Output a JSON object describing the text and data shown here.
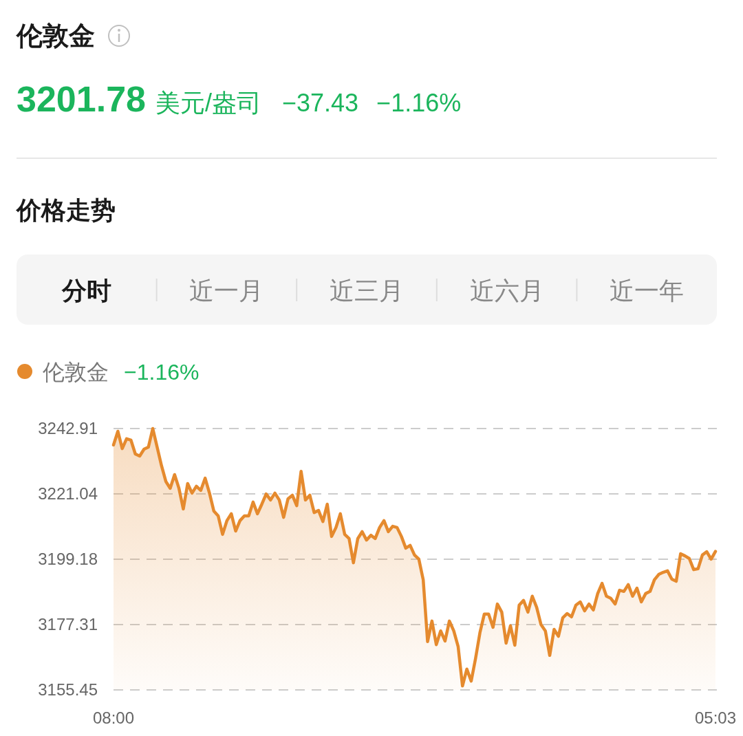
{
  "chart_data": {
    "type": "area",
    "title": "伦敦金",
    "annotations": [
      "3201.78",
      "美元/盎司",
      "−37.43",
      "−1.16%",
      "价格走势",
      "分时",
      "近一月",
      "近三月",
      "近六月",
      "近一年",
      "−1.16%"
    ],
    "categories": [
      "08:00",
      null,
      null,
      null,
      null,
      null,
      null,
      null,
      null,
      null,
      null,
      null,
      null,
      null,
      null,
      null,
      null,
      null,
      null,
      null,
      null,
      null,
      null,
      null,
      null,
      null,
      null,
      null,
      null,
      null,
      null,
      null,
      null,
      null,
      null,
      null,
      null,
      null,
      null,
      null,
      null,
      null,
      null,
      null,
      null,
      null,
      null,
      null,
      null,
      null,
      null,
      null,
      null,
      null,
      null,
      null,
      null,
      null,
      null,
      null,
      null,
      null,
      null,
      null,
      null,
      null,
      null,
      null,
      null,
      null,
      null,
      null,
      null,
      null,
      null,
      null,
      null,
      null,
      null,
      null,
      null,
      null,
      null,
      null,
      null,
      null,
      null,
      null,
      null,
      null,
      null,
      null,
      null,
      null,
      null,
      null,
      null,
      null,
      null,
      null,
      null,
      null,
      null,
      null,
      null,
      null,
      null,
      null,
      null,
      null,
      null,
      null,
      null,
      null,
      null,
      null,
      null,
      null,
      null,
      null,
      null,
      null,
      null,
      null,
      null,
      null,
      null,
      null,
      null,
      null,
      null,
      null,
      null,
      null,
      null,
      null,
      null,
      null,
      "05:03"
    ],
    "series": [
      {
        "name": "伦敦金",
        "color": "#e58a2e",
        "values": [
          3237.4,
          3242.0,
          3236.2,
          3239.5,
          3239.0,
          3234.4,
          3233.7,
          3236.0,
          3236.7,
          3242.9,
          3236.7,
          3230.5,
          3225.2,
          3222.9,
          3227.5,
          3222.9,
          3216.0,
          3224.5,
          3221.3,
          3223.6,
          3222.2,
          3226.3,
          3221.3,
          3215.3,
          3213.7,
          3207.5,
          3212.1,
          3214.4,
          3208.6,
          3212.1,
          3213.7,
          3213.7,
          3218.3,
          3214.4,
          3217.6,
          3221.0,
          3219.0,
          3221.3,
          3219.0,
          3213.2,
          3219.4,
          3220.6,
          3217.1,
          3228.6,
          3219.0,
          3220.6,
          3214.8,
          3215.5,
          3211.8,
          3217.6,
          3206.8,
          3209.8,
          3214.4,
          3207.5,
          3206.1,
          3198.0,
          3206.1,
          3208.4,
          3205.6,
          3207.2,
          3206.1,
          3209.8,
          3212.1,
          3208.4,
          3210.2,
          3209.8,
          3206.8,
          3202.9,
          3203.8,
          3200.6,
          3199.2,
          3192.3,
          3171.6,
          3178.5,
          3170.6,
          3175.2,
          3171.8,
          3178.5,
          3175.2,
          3170.0,
          3156.8,
          3162.4,
          3158.4,
          3166.0,
          3174.6,
          3180.8,
          3180.8,
          3176.4,
          3184.2,
          3181.5,
          3171.1,
          3176.9,
          3170.4,
          3183.8,
          3185.4,
          3181.5,
          3186.8,
          3183.1,
          3177.3,
          3175.2,
          3167.0,
          3175.7,
          3173.4,
          3179.6,
          3181.0,
          3179.9,
          3183.8,
          3184.9,
          3181.9,
          3184.2,
          3182.2,
          3187.7,
          3191.1,
          3186.8,
          3186.1,
          3184.2,
          3188.8,
          3188.4,
          3190.7,
          3186.8,
          3189.5,
          3184.9,
          3187.7,
          3188.4,
          3192.3,
          3194.1,
          3194.8,
          3195.3,
          3192.5,
          3191.8,
          3201.0,
          3200.3,
          3199.4,
          3195.7,
          3196.0,
          3200.6,
          3201.7,
          3199.2,
          3201.8
        ]
      }
    ],
    "ylim": [
      3155.45,
      3242.91
    ],
    "yticks": [
      3155.45,
      3177.31,
      3199.18,
      3221.04,
      3242.91
    ],
    "grid": "y",
    "legend": "top left",
    "marker": "none",
    "line_style": "solid"
  }
}
